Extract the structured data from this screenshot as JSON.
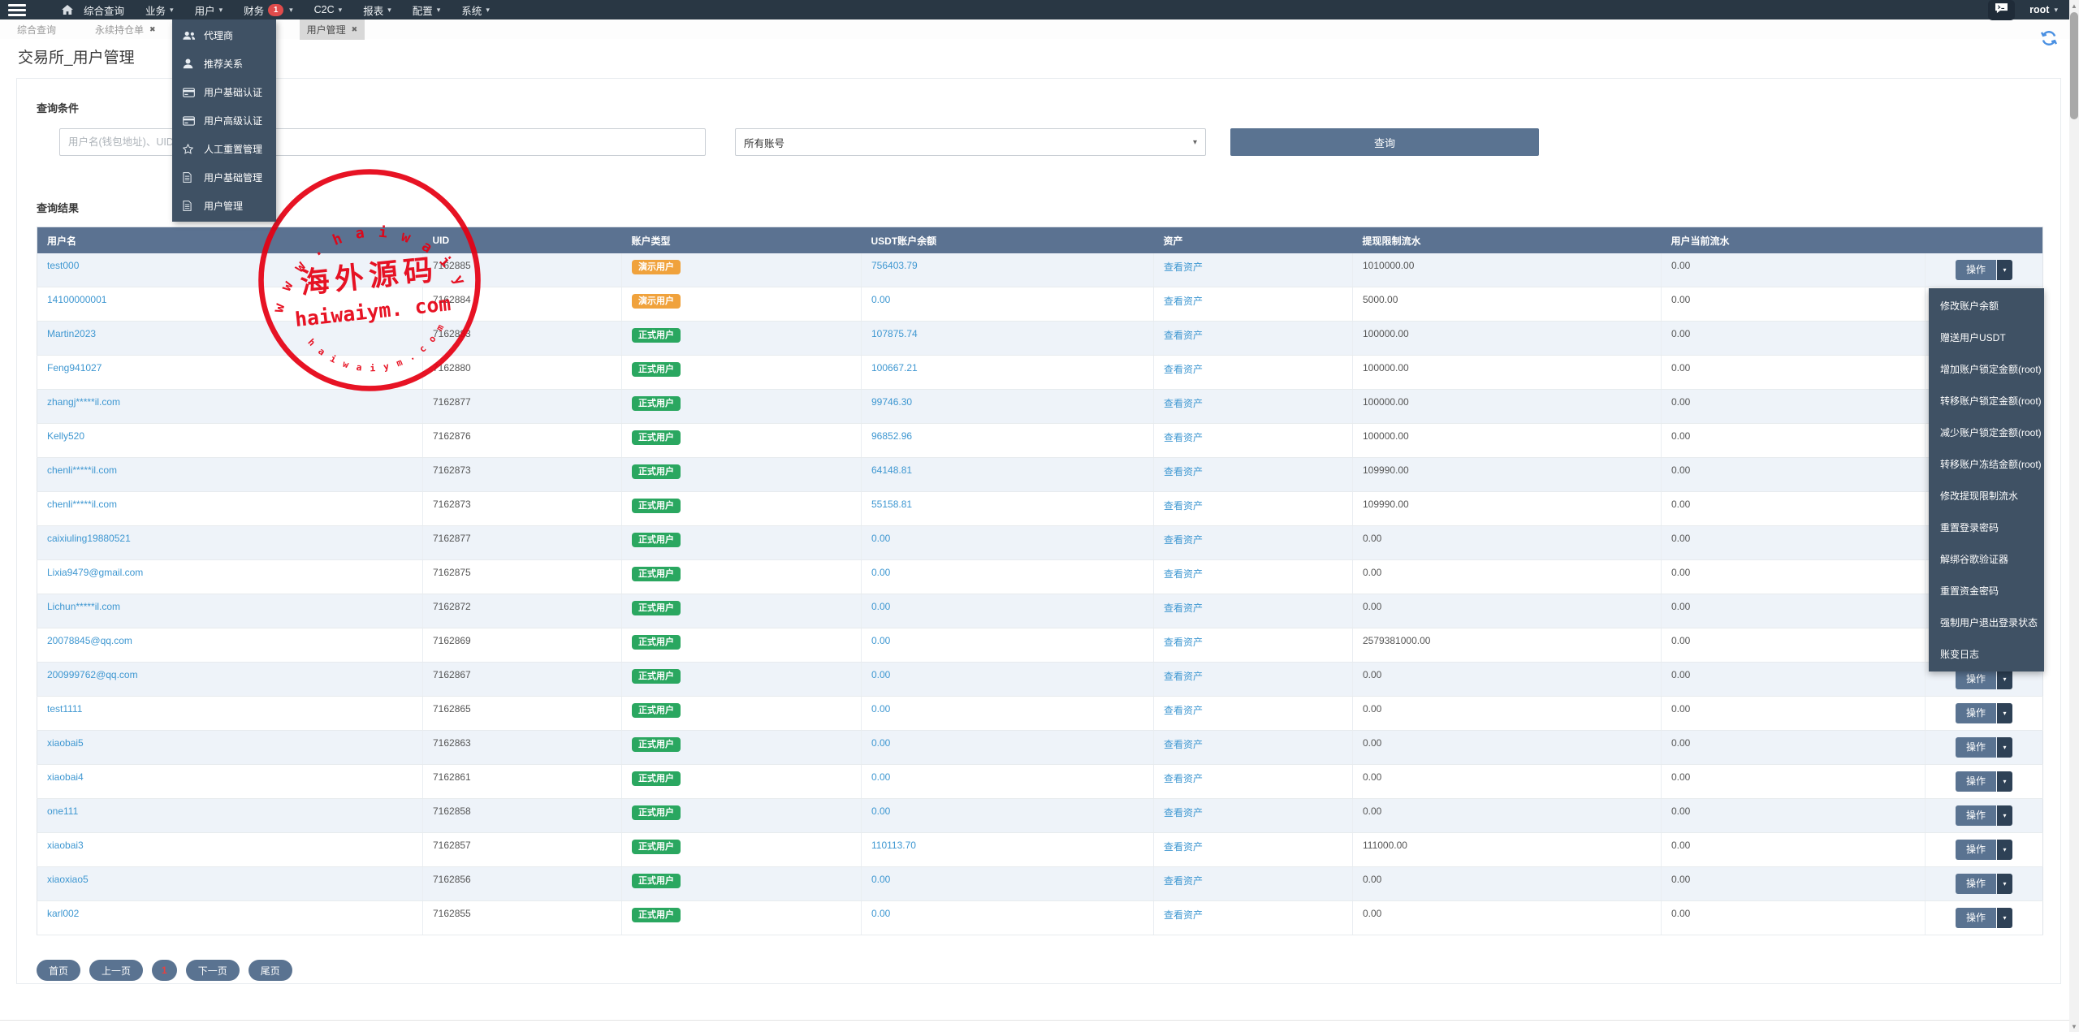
{
  "navbar": {
    "items": [
      {
        "label": "综合查询",
        "caret": false,
        "badge": ""
      },
      {
        "label": "业务",
        "caret": true,
        "badge": ""
      },
      {
        "label": "用户",
        "caret": true,
        "badge": "",
        "open": true
      },
      {
        "label": "财务",
        "caret": true,
        "badge": "1"
      },
      {
        "label": "C2C",
        "caret": true,
        "badge": ""
      },
      {
        "label": "报表",
        "caret": true,
        "badge": ""
      },
      {
        "label": "配置",
        "caret": true,
        "badge": ""
      },
      {
        "label": "系统",
        "caret": true,
        "badge": ""
      }
    ],
    "username": "root"
  },
  "user_menu": {
    "items": [
      {
        "icon": "users-icon",
        "label": "代理商"
      },
      {
        "icon": "user-icon",
        "label": "推荐关系"
      },
      {
        "icon": "credit-card-icon",
        "label": "用户基础认证"
      },
      {
        "icon": "credit-card-icon",
        "label": "用户高级认证"
      },
      {
        "icon": "star-icon",
        "label": "人工重置管理"
      },
      {
        "icon": "file-icon",
        "label": "用户基础管理"
      },
      {
        "icon": "file-icon",
        "label": "用户管理"
      }
    ]
  },
  "tabs": [
    {
      "label": "综合查询",
      "closable": false,
      "active": false
    },
    {
      "label": "永续持仓单",
      "closable": true,
      "active": false
    },
    {
      "label": "用户管理",
      "closable": true,
      "active": true
    }
  ],
  "page": {
    "title": "交易所_用户管理"
  },
  "search": {
    "section_label": "查询条件",
    "username_placeholder": "用户名(钱包地址)、UID",
    "account_type_selected": "所有账号",
    "submit_label": "查询"
  },
  "results": {
    "section_label": "查询结果",
    "columns": [
      "用户名",
      "UID",
      "账户类型",
      "USDT账户余额",
      "资产",
      "提现限制流水",
      "用户当前流水",
      ""
    ],
    "asset_link_label": "查看资产",
    "action_button_label": "操作",
    "rows": [
      {
        "username": "test000",
        "uid": "7162885",
        "type": "demo",
        "type_label": "演示用户",
        "usdt_balance": "756403.79",
        "withdraw_limit_flow": "1010000.00",
        "current_flow": "0.00"
      },
      {
        "username": "14100000001",
        "uid": "7162884",
        "type": "demo",
        "type_label": "演示用户",
        "usdt_balance": "0.00",
        "withdraw_limit_flow": "5000.00",
        "current_flow": "0.00"
      },
      {
        "username": "Martin2023",
        "uid": "7162883",
        "type": "normal",
        "type_label": "正式用户",
        "usdt_balance": "107875.74",
        "withdraw_limit_flow": "100000.00",
        "current_flow": "0.00"
      },
      {
        "username": "Feng941027",
        "uid": "7162880",
        "type": "normal",
        "type_label": "正式用户",
        "usdt_balance": "100667.21",
        "withdraw_limit_flow": "100000.00",
        "current_flow": "0.00"
      },
      {
        "username": "zhangj*****il.com",
        "uid": "7162877",
        "type": "normal",
        "type_label": "正式用户",
        "usdt_balance": "99746.30",
        "withdraw_limit_flow": "100000.00",
        "current_flow": "0.00"
      },
      {
        "username": "Kelly520",
        "uid": "7162876",
        "type": "normal",
        "type_label": "正式用户",
        "usdt_balance": "96852.96",
        "withdraw_limit_flow": "100000.00",
        "current_flow": "0.00"
      },
      {
        "username": "chenli*****il.com",
        "uid": "7162873",
        "type": "normal",
        "type_label": "正式用户",
        "usdt_balance": "64148.81",
        "withdraw_limit_flow": "109990.00",
        "current_flow": "0.00"
      },
      {
        "username": "chenli*****il.com",
        "uid": "7162873",
        "type": "normal",
        "type_label": "正式用户",
        "usdt_balance": "55158.81",
        "withdraw_limit_flow": "109990.00",
        "current_flow": "0.00"
      },
      {
        "username": "caixiuling19880521",
        "uid": "7162877",
        "type": "normal",
        "type_label": "正式用户",
        "usdt_balance": "0.00",
        "withdraw_limit_flow": "0.00",
        "current_flow": "0.00"
      },
      {
        "username": "Lixia9479@gmail.com",
        "uid": "7162875",
        "type": "normal",
        "type_label": "正式用户",
        "usdt_balance": "0.00",
        "withdraw_limit_flow": "0.00",
        "current_flow": "0.00"
      },
      {
        "username": "Lichun*****il.com",
        "uid": "7162872",
        "type": "normal",
        "type_label": "正式用户",
        "usdt_balance": "0.00",
        "withdraw_limit_flow": "0.00",
        "current_flow": "0.00"
      },
      {
        "username": "20078845@qq.com",
        "uid": "7162869",
        "type": "normal",
        "type_label": "正式用户",
        "usdt_balance": "0.00",
        "withdraw_limit_flow": "2579381000.00",
        "current_flow": "0.00"
      },
      {
        "username": "200999762@qq.com",
        "uid": "7162867",
        "type": "normal",
        "type_label": "正式用户",
        "usdt_balance": "0.00",
        "withdraw_limit_flow": "0.00",
        "current_flow": "0.00"
      },
      {
        "username": "test1111",
        "uid": "7162865",
        "type": "normal",
        "type_label": "正式用户",
        "usdt_balance": "0.00",
        "withdraw_limit_flow": "0.00",
        "current_flow": "0.00"
      },
      {
        "username": "xiaobai5",
        "uid": "7162863",
        "type": "normal",
        "type_label": "正式用户",
        "usdt_balance": "0.00",
        "withdraw_limit_flow": "0.00",
        "current_flow": "0.00"
      },
      {
        "username": "xiaobai4",
        "uid": "7162861",
        "type": "normal",
        "type_label": "正式用户",
        "usdt_balance": "0.00",
        "withdraw_limit_flow": "0.00",
        "current_flow": "0.00"
      },
      {
        "username": "one111",
        "uid": "7162858",
        "type": "normal",
        "type_label": "正式用户",
        "usdt_balance": "0.00",
        "withdraw_limit_flow": "0.00",
        "current_flow": "0.00"
      },
      {
        "username": "xiaobai3",
        "uid": "7162857",
        "type": "normal",
        "type_label": "正式用户",
        "usdt_balance": "110113.70",
        "withdraw_limit_flow": "111000.00",
        "current_flow": "0.00"
      },
      {
        "username": "xiaoxiao5",
        "uid": "7162856",
        "type": "normal",
        "type_label": "正式用户",
        "usdt_balance": "0.00",
        "withdraw_limit_flow": "0.00",
        "current_flow": "0.00"
      },
      {
        "username": "karl002",
        "uid": "7162855",
        "type": "normal",
        "type_label": "正式用户",
        "usdt_balance": "0.00",
        "withdraw_limit_flow": "0.00",
        "current_flow": "0.00"
      }
    ]
  },
  "action_menu": {
    "items": [
      "修改账户余额",
      "赠送用户USDT",
      "增加账户锁定金额(root)",
      "转移账户锁定金额(root)",
      "减少账户锁定金额(root)",
      "转移账户冻结金额(root)",
      "修改提现限制流水",
      "重置登录密码",
      "解绑谷歌验证器",
      "重置资金密码",
      "强制用户退出登录状态",
      "账变日志"
    ]
  },
  "pagination": {
    "first": "首页",
    "prev": "上一页",
    "current": "1",
    "next": "下一页",
    "last": "尾页"
  },
  "watermark": {
    "arc_text": "w w w .  h a i w a i y m . c o m",
    "center_text": "海外源码",
    "domain_text": "haiwaiym. com",
    "bottom_arc_text": "h a i w a i y m . c o m",
    "color": "#e60012"
  },
  "colors": {
    "navbar_bg": "#293744",
    "dropdown_bg": "#3f5164",
    "table_header_bg": "#5b7291",
    "accent_button": "#5a7391",
    "link": "#3e97d1",
    "badge_demo": "#f0a23c",
    "badge_normal": "#2aa760",
    "notification_red": "#e04b4b",
    "stamp_red": "#e60012"
  }
}
